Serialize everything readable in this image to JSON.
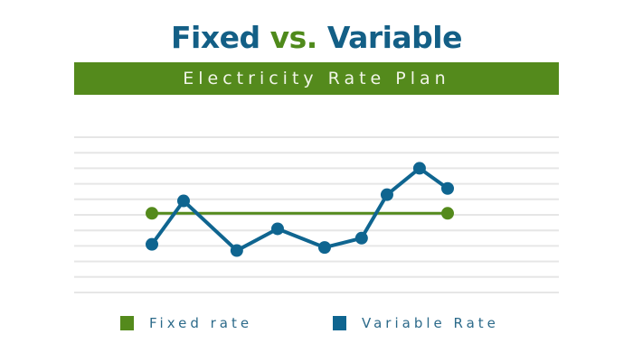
{
  "title": {
    "part1": "Fixed",
    "part2": "vs.",
    "part3": "Variable"
  },
  "subtitle": "Electricity Rate Plan",
  "colors": {
    "fixed": "#548a1c",
    "variable": "#0f6590",
    "title": "#135f86",
    "grid": "#e6e6e6"
  },
  "chart_data": {
    "type": "line",
    "title": "Fixed vs. Variable",
    "subtitle": "Electricity Rate Plan",
    "xlabel": "",
    "ylabel": "",
    "ylim": [
      0,
      10
    ],
    "xlim": [
      0,
      10
    ],
    "grid": true,
    "legend_position": "bottom",
    "series": [
      {
        "name": "Fixed rate",
        "color": "#548a1c",
        "x": [
          0,
          10
        ],
        "y": [
          5.1,
          5.1
        ]
      },
      {
        "name": "Variable Rate",
        "color": "#0f6590",
        "x": [
          0,
          1.07,
          2.87,
          4.25,
          5.84,
          7.09,
          7.95,
          9.05,
          10
        ],
        "y": [
          3.1,
          5.9,
          2.7,
          4.1,
          2.9,
          3.5,
          6.3,
          8.0,
          6.7
        ]
      }
    ]
  },
  "legend": [
    {
      "label": "Fixed rate"
    },
    {
      "label": "Variable Rate"
    }
  ]
}
